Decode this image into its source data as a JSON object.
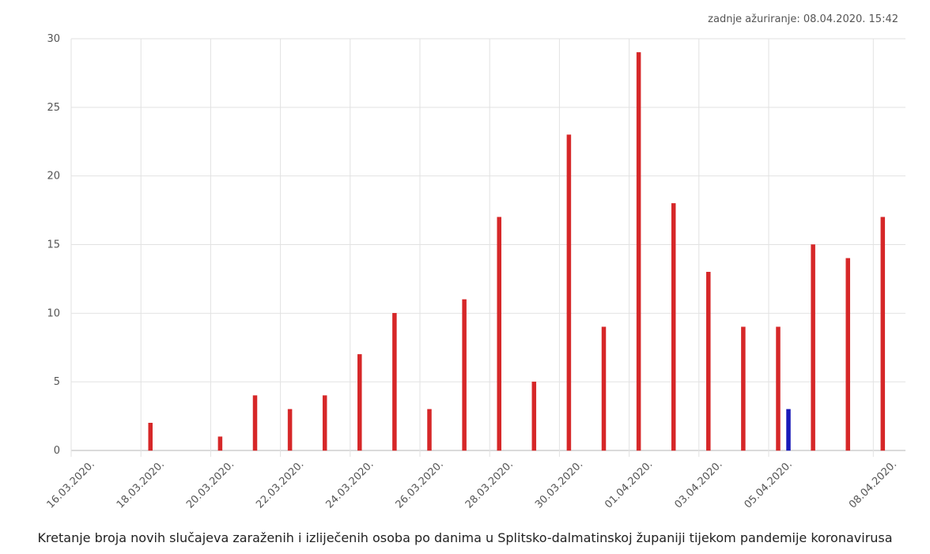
{
  "last_updated": "zadnje ažuriranje: 08.04.2020. 15:42",
  "caption": "Kretanje broja novih slučajeva zaraženih i izliječenih osoba po danima u Splitsko-dalmatinskoj županiji tijekom pandemije koronavirusa",
  "chart_data": {
    "type": "bar",
    "title": "",
    "xlabel": "",
    "ylabel": "",
    "ylim": [
      0,
      30
    ],
    "y_ticks": [
      0,
      5,
      10,
      15,
      20,
      25,
      30
    ],
    "x_range": [
      "16.03.2020.",
      "08.04.2020."
    ],
    "x_tick_labels": [
      "16.03.2020.",
      "18.03.2020.",
      "20.03.2020.",
      "22.03.2020.",
      "24.03.2020.",
      "26.03.2020.",
      "28.03.2020.",
      "30.03.2020.",
      "01.04.2020.",
      "03.04.2020.",
      "05.04.2020.",
      "08.04.2020."
    ],
    "grid": true,
    "series": [
      {
        "color": "#d62728",
        "points": [
          {
            "x": "18.03.2020.",
            "y": 2
          },
          {
            "x": "20.03.2020.",
            "y": 1
          },
          {
            "x": "21.03.2020.",
            "y": 4
          },
          {
            "x": "22.03.2020.",
            "y": 3
          },
          {
            "x": "23.03.2020.",
            "y": 4
          },
          {
            "x": "24.03.2020.",
            "y": 7
          },
          {
            "x": "25.03.2020.",
            "y": 10
          },
          {
            "x": "26.03.2020.",
            "y": 3
          },
          {
            "x": "27.03.2020.",
            "y": 11
          },
          {
            "x": "28.03.2020.",
            "y": 17
          },
          {
            "x": "29.03.2020.",
            "y": 5
          },
          {
            "x": "30.03.2020.",
            "y": 23
          },
          {
            "x": "31.03.2020.",
            "y": 9
          },
          {
            "x": "01.04.2020.",
            "y": 29
          },
          {
            "x": "02.04.2020.",
            "y": 18
          },
          {
            "x": "03.04.2020.",
            "y": 13
          },
          {
            "x": "04.04.2020.",
            "y": 9
          },
          {
            "x": "05.04.2020.",
            "y": 9
          },
          {
            "x": "06.04.2020.",
            "y": 15
          },
          {
            "x": "07.04.2020.",
            "y": 14
          },
          {
            "x": "08.04.2020.",
            "y": 17
          }
        ]
      },
      {
        "color": "#1a1ab8",
        "points": [
          {
            "x": "05.04.2020.",
            "y": 3
          }
        ]
      }
    ]
  }
}
